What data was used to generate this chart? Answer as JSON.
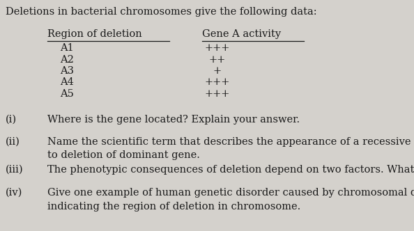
{
  "background_color": "#d4d1cc",
  "text_color": "#1a1a1a",
  "title_text": "Deletions in bacterial chromosomes give the following data:",
  "title_fontsize": 10.5,
  "col1_header": "Region of deletion",
  "col2_header": "Gene A activity",
  "rows": [
    {
      "region": "A1",
      "activity": "+++"
    },
    {
      "region": "A2",
      "activity": "++"
    },
    {
      "region": "A3",
      "activity": "+"
    },
    {
      "region": "A4",
      "activity": "+++"
    },
    {
      "region": "A5",
      "activity": "+++"
    }
  ],
  "row_fontsize": 10.5,
  "header_fontsize": 10.5,
  "questions": [
    {
      "label": "(i)",
      "text": "Where is the gene located? Explain your answer.",
      "multiline": false
    },
    {
      "label": "(ii)",
      "text": "Name the scientific term that describes the appearance of a recessive phenotype due\nto deletion of dominant gene.",
      "multiline": true
    },
    {
      "label": "(iii)",
      "text": "The phenotypic consequences of deletion depend on two factors. What are they?",
      "multiline": false
    },
    {
      "label": "(iv)",
      "text": "Give one example of human genetic disorder caused by chromosomal deletion by\nindicating the region of deletion in chromosome.",
      "multiline": true
    }
  ],
  "question_fontsize": 10.5
}
